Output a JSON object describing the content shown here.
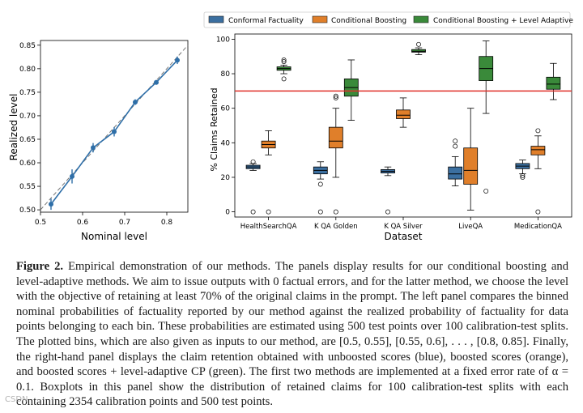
{
  "chart_data": [
    {
      "type": "line",
      "xlabel": "Nominal level",
      "ylabel": "Realized level",
      "xlim": [
        0.5,
        0.85
      ],
      "ylim": [
        0.495,
        0.86
      ],
      "x_ticks": [
        "0.5",
        "0.6",
        "0.7",
        "0.8"
      ],
      "y_ticks": [
        "0.50",
        "0.55",
        "0.60",
        "0.65",
        "0.70",
        "0.75",
        "0.80",
        "0.85"
      ],
      "points": [
        {
          "x": 0.525,
          "y": 0.512,
          "err": 0.012
        },
        {
          "x": 0.575,
          "y": 0.571,
          "err": 0.015
        },
        {
          "x": 0.625,
          "y": 0.632,
          "err": 0.01
        },
        {
          "x": 0.675,
          "y": 0.666,
          "err": 0.01
        },
        {
          "x": 0.725,
          "y": 0.729,
          "err": 0.006
        },
        {
          "x": 0.775,
          "y": 0.771,
          "err": 0.005
        },
        {
          "x": 0.825,
          "y": 0.818,
          "err": 0.008
        }
      ],
      "reference_line": "y = x (dashed)"
    },
    {
      "type": "boxplot",
      "xlabel": "Dataset",
      "ylabel": "% Claims Retained",
      "ylim": [
        -3,
        103
      ],
      "y_ticks": [
        "0",
        "20",
        "40",
        "60",
        "80",
        "100"
      ],
      "categories": [
        "HealthSearchQA",
        "K QA Golden",
        "K QA Silver",
        "LiveQA",
        "MedicationQA"
      ],
      "threshold": 70,
      "series": [
        {
          "name": "Conformal Factuality",
          "color": "#3b6fa0",
          "boxes": [
            {
              "whislo": 24,
              "q1": 25,
              "med": 26,
              "q3": 27,
              "whishi": 28,
              "fliers": [
                29,
                0
              ]
            },
            {
              "whislo": 19,
              "q1": 22,
              "med": 24,
              "q3": 26,
              "whishi": 29,
              "fliers": [
                16,
                0
              ]
            },
            {
              "whislo": 21,
              "q1": 22.5,
              "med": 23.5,
              "q3": 24.5,
              "whishi": 26,
              "fliers": [
                0
              ]
            },
            {
              "whislo": 15,
              "q1": 19,
              "med": 22,
              "q3": 26,
              "whishi": 32,
              "fliers": [
                38,
                41
              ]
            },
            {
              "whislo": 22,
              "q1": 25,
              "med": 26.5,
              "q3": 28,
              "whishi": 30,
              "fliers": [
                20,
                21
              ]
            }
          ]
        },
        {
          "name": "Conditional Boosting",
          "color": "#e07f2a",
          "boxes": [
            {
              "whislo": 33,
              "q1": 37,
              "med": 39,
              "q3": 41,
              "whishi": 47,
              "fliers": [
                0
              ]
            },
            {
              "whislo": 20,
              "q1": 37,
              "med": 41,
              "q3": 49,
              "whishi": 60,
              "fliers": [
                66,
                67,
                0
              ]
            },
            {
              "whislo": 49,
              "q1": 54,
              "med": 56,
              "q3": 59,
              "whishi": 66,
              "fliers": []
            },
            {
              "whislo": 1,
              "q1": 16,
              "med": 24,
              "q3": 37,
              "whishi": 60,
              "fliers": []
            },
            {
              "whislo": 25,
              "q1": 33,
              "med": 36,
              "q3": 38,
              "whishi": 44,
              "fliers": [
                47,
                0
              ]
            }
          ]
        },
        {
          "name": "Conditional Boosting + Level Adaptive",
          "color": "#3a8a3a",
          "boxes": [
            {
              "whislo": 80,
              "q1": 82,
              "med": 83,
              "q3": 84,
              "whishi": 85,
              "fliers": [
                77,
                87,
                88
              ]
            },
            {
              "whislo": 53,
              "q1": 67,
              "med": 72,
              "q3": 77,
              "whishi": 88,
              "fliers": []
            },
            {
              "whislo": 91,
              "q1": 92.5,
              "med": 93,
              "q3": 94,
              "whishi": 95,
              "fliers": [
                97
              ]
            },
            {
              "whislo": 57,
              "q1": 76,
              "med": 83,
              "q3": 90,
              "whishi": 99,
              "fliers": [
                12
              ]
            },
            {
              "whislo": 65,
              "q1": 71,
              "med": 74,
              "q3": 78,
              "whishi": 86,
              "fliers": []
            }
          ]
        }
      ]
    }
  ],
  "caption": {
    "label": "Figure 2.",
    "body": " Empirical demonstration of our methods. The panels display results for our conditional boosting and level-adaptive methods. We aim to issue outputs with 0 factual errors, and for the latter method, we choose the level with the objective of retaining at least 70% of the original claims in the prompt. The left panel compares the binned nominal probabilities of factuality reported by our method against the realized probability of factuality for data points belonging to each bin. These probabilities are estimated using 500 test points over 100 calibration-test splits. The plotted bins, which are also given as inputs to our method, are [0.5, 0.55], [0.55, 0.6], . . . , [0.8, 0.85]. Finally, the right-hand panel displays the claim retention obtained with unboosted scores (blue), boosted scores (orange), and boosted scores + level-adaptive CP (green). The first two methods are implemented at a fixed error rate of α = 0.1. Boxplots in this panel show the distribution of retained claims for 100 calibration-test splits with each containing 2354 calibration points and 500 test points."
  },
  "watermark": "CSDN"
}
